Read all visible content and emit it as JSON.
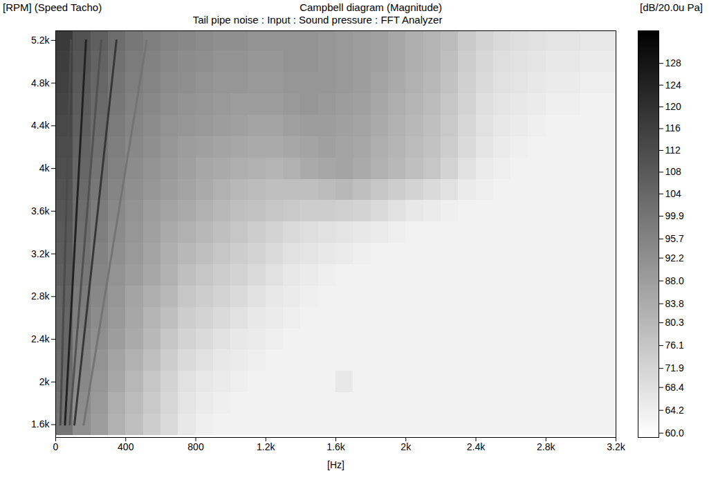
{
  "chart_data": {
    "type": "heatmap",
    "title": "Campbell diagram (Magnitude)",
    "subtitle": "Tail pipe noise : Input : Sound pressure : FFT Analyzer",
    "xlabel": "[Hz]",
    "ylabel": "[RPM] (Speed Tacho)",
    "colorbar_label": "[dB/20.0u Pa]",
    "grid": false,
    "xlim": [
      0,
      3200
    ],
    "xticks": [
      0,
      400,
      800,
      {
        "value": 1200,
        "label": "1.2k"
      },
      {
        "value": 1600,
        "label": "1.6k"
      },
      {
        "value": 2000,
        "label": "2k"
      },
      {
        "value": 2400,
        "label": "2.4k"
      },
      {
        "value": 2800,
        "label": "2.8k"
      },
      {
        "value": 3200,
        "label": "3.2k"
      }
    ],
    "ylim": [
      1480,
      5290
    ],
    "yticks": [
      {
        "value": 1600,
        "label": "1.6k"
      },
      {
        "value": 2000,
        "label": "2k"
      },
      {
        "value": 2400,
        "label": "2.4k"
      },
      {
        "value": 2800,
        "label": "2.8k"
      },
      {
        "value": 3200,
        "label": "3.2k"
      },
      {
        "value": 3600,
        "label": "3.6k"
      },
      {
        "value": 4000,
        "label": "4k"
      },
      {
        "value": 4400,
        "label": "4.4k"
      },
      {
        "value": 4800,
        "label": "4.8k"
      },
      {
        "value": 5200,
        "label": "5.2k"
      }
    ],
    "colorbar": {
      "range": [
        59.2,
        134
      ],
      "ticks": [
        {
          "value": 60,
          "label": "60.0"
        },
        64.2,
        68.4,
        71.9,
        76.1,
        80.3,
        83.8,
        {
          "value": 88,
          "label": "88.0"
        },
        92.2,
        95.7,
        99.9,
        104,
        108,
        112,
        116,
        120,
        124,
        128
      ]
    },
    "cells": {
      "hz_bins": [
        0,
        100,
        200,
        300,
        400,
        500,
        600,
        700,
        800,
        900,
        1000,
        1100,
        1200,
        1300,
        1400,
        1500,
        1600,
        1700,
        1800,
        1900,
        2000,
        2100,
        2200,
        2300,
        2400,
        2500,
        2600,
        2700,
        2800,
        2900,
        3000,
        3100,
        3200
      ],
      "rpm_bins": [
        1500,
        1700,
        1900,
        2100,
        2300,
        2500,
        2700,
        2900,
        3100,
        3300,
        3500,
        3700,
        3900,
        4100,
        4300,
        4500,
        4700,
        4900,
        5100,
        5300
      ],
      "db": [
        [
          100,
          92,
          88,
          82,
          78,
          74,
          70,
          66,
          64,
          63,
          63,
          63,
          63,
          63,
          63,
          63,
          63,
          63,
          63,
          63,
          63,
          63,
          63,
          63,
          63,
          63,
          63,
          63,
          63,
          63,
          63,
          63
        ],
        [
          101,
          93,
          89,
          83,
          79,
          75,
          71,
          67,
          65,
          64,
          63,
          63,
          63,
          63,
          63,
          63,
          63,
          63,
          63,
          63,
          63,
          63,
          63,
          63,
          63,
          63,
          63,
          63,
          63,
          63,
          63,
          63
        ],
        [
          102,
          94,
          90,
          85,
          80,
          76,
          72,
          68,
          66,
          65,
          64,
          63,
          63,
          63,
          63,
          63,
          66,
          63,
          63,
          63,
          63,
          63,
          63,
          63,
          63,
          63,
          63,
          63,
          63,
          63,
          63,
          63
        ],
        [
          103,
          95,
          91,
          86,
          82,
          78,
          74,
          70,
          68,
          66,
          65,
          64,
          63,
          63,
          63,
          63,
          63,
          63,
          63,
          63,
          63,
          63,
          63,
          63,
          63,
          63,
          63,
          63,
          63,
          63,
          63,
          63
        ],
        [
          104,
          96,
          92,
          88,
          84,
          80,
          76,
          72,
          70,
          68,
          66,
          65,
          64,
          63,
          63,
          63,
          63,
          63,
          63,
          63,
          63,
          63,
          63,
          63,
          63,
          63,
          63,
          63,
          63,
          63,
          63,
          63
        ],
        [
          104,
          97,
          93,
          89,
          85,
          81,
          78,
          74,
          72,
          70,
          68,
          66,
          65,
          64,
          63,
          63,
          63,
          63,
          63,
          63,
          63,
          63,
          63,
          63,
          63,
          63,
          63,
          63,
          63,
          63,
          63,
          63
        ],
        [
          105,
          98,
          94,
          90,
          86,
          83,
          80,
          76,
          74,
          72,
          70,
          68,
          66,
          65,
          64,
          63,
          63,
          63,
          63,
          63,
          63,
          63,
          63,
          63,
          63,
          63,
          63,
          63,
          63,
          63,
          63,
          63
        ],
        [
          106,
          99,
          95,
          91,
          88,
          85,
          82,
          78,
          76,
          74,
          72,
          70,
          68,
          66,
          65,
          64,
          63,
          63,
          63,
          63,
          63,
          63,
          63,
          63,
          63,
          63,
          63,
          63,
          63,
          63,
          63,
          63
        ],
        [
          107,
          100,
          96,
          92,
          89,
          86,
          83,
          80,
          78,
          76,
          74,
          72,
          70,
          68,
          67,
          66,
          65,
          64,
          63,
          63,
          63,
          63,
          63,
          63,
          63,
          63,
          63,
          63,
          63,
          63,
          63,
          63
        ],
        [
          108,
          101,
          97,
          93,
          90,
          87,
          84,
          82,
          80,
          78,
          76,
          74,
          72,
          70,
          69,
          68,
          67,
          66,
          65,
          64,
          63,
          63,
          63,
          63,
          63,
          63,
          63,
          63,
          63,
          63,
          63,
          63
        ],
        [
          109,
          102,
          98,
          94,
          91,
          88,
          86,
          84,
          82,
          80,
          78,
          77,
          76,
          75,
          74,
          74,
          73,
          72,
          70,
          68,
          66,
          65,
          64,
          63,
          63,
          63,
          63,
          63,
          63,
          63,
          63,
          63
        ],
        [
          110,
          103,
          99,
          95,
          92,
          90,
          88,
          86,
          84,
          82,
          80,
          79,
          78,
          78,
          78,
          79,
          80,
          78,
          76,
          74,
          72,
          70,
          68,
          65,
          64,
          63,
          63,
          63,
          63,
          63,
          63,
          63
        ],
        [
          111,
          104,
          100,
          96,
          93,
          91,
          89,
          87,
          85,
          84,
          83,
          82,
          81,
          82,
          84,
          85,
          86,
          84,
          82,
          80,
          78,
          76,
          72,
          68,
          65,
          64,
          63,
          63,
          63,
          63,
          63,
          63
        ],
        [
          112,
          105,
          101,
          97,
          94,
          92,
          90,
          88,
          87,
          86,
          85,
          84,
          84,
          85,
          86,
          87,
          86,
          85,
          83,
          81,
          79,
          77,
          74,
          70,
          67,
          65,
          64,
          63,
          63,
          63,
          63,
          63
        ],
        [
          113,
          106,
          102,
          98,
          95,
          93,
          91,
          90,
          89,
          88,
          87,
          86,
          86,
          87,
          88,
          88,
          87,
          86,
          84,
          82,
          80,
          78,
          75,
          71,
          68,
          66,
          65,
          64,
          63,
          63,
          63,
          63
        ],
        [
          114,
          107,
          103,
          99,
          96,
          94,
          92,
          91,
          90,
          89,
          88,
          88,
          88,
          89,
          90,
          89,
          88,
          87,
          85,
          83,
          81,
          79,
          76,
          72,
          69,
          67,
          66,
          65,
          64,
          64,
          63,
          63
        ],
        [
          115,
          108,
          104,
          100,
          97,
          95,
          93,
          92,
          91,
          90,
          90,
          89,
          89,
          90,
          90,
          90,
          89,
          88,
          86,
          84,
          82,
          80,
          77,
          73,
          70,
          68,
          67,
          66,
          65,
          65,
          64,
          64
        ],
        [
          116,
          109,
          105,
          101,
          98,
          96,
          94,
          93,
          92,
          91,
          91,
          90,
          90,
          91,
          91,
          90,
          89,
          88,
          87,
          85,
          83,
          81,
          78,
          74,
          71,
          69,
          68,
          67,
          66,
          66,
          65,
          65
        ],
        [
          117,
          110,
          106,
          102,
          99,
          97,
          95,
          94,
          93,
          92,
          92,
          91,
          91,
          91,
          91,
          90,
          89,
          88,
          87,
          85,
          83,
          81,
          79,
          75,
          72,
          70,
          69,
          68,
          67,
          67,
          66,
          66
        ]
      ]
    },
    "order_lines": [
      {
        "hz": [
          27,
          87
        ],
        "rpm": [
          1600,
          5200
        ],
        "db": 112
      },
      {
        "hz": [
          53,
          173
        ],
        "rpm": [
          1600,
          5200
        ],
        "db": 124
      },
      {
        "hz": [
          80,
          260
        ],
        "rpm": [
          1600,
          5200
        ],
        "db": 110
      },
      {
        "hz": [
          107,
          347
        ],
        "rpm": [
          1600,
          5200
        ],
        "db": 118
      },
      {
        "hz": [
          160,
          520
        ],
        "rpm": [
          1600,
          5200
        ],
        "db": 100
      }
    ]
  }
}
